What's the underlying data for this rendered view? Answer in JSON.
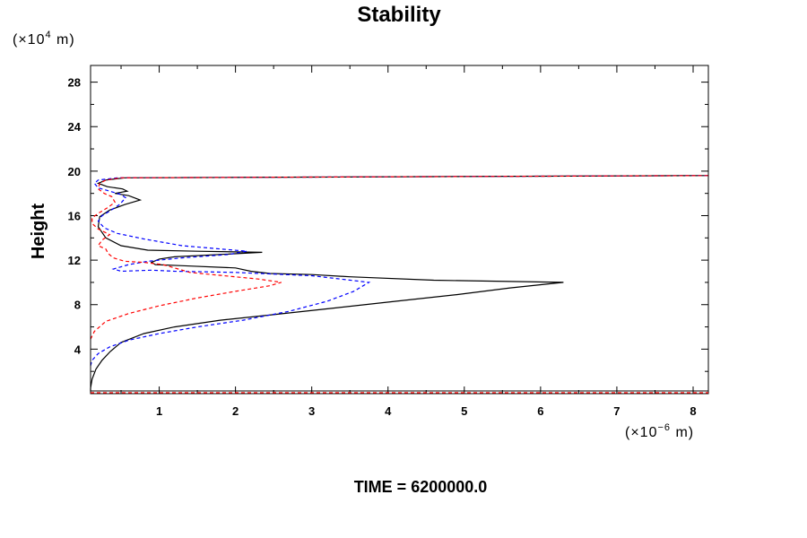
{
  "chart_data": {
    "type": "line",
    "title": "Stability",
    "ylabel": "Height",
    "y_unit_prefix": "(×10",
    "y_unit_exp": "4",
    "y_unit_suffix": " m)",
    "x_unit_prefix": "(×10",
    "x_unit_exp": "−6",
    "x_unit_suffix": " m)",
    "xlim": [
      0.1,
      8.2
    ],
    "ylim": [
      0,
      29.5
    ],
    "x_ticks": [
      "1",
      "2",
      "3",
      "4",
      "5",
      "6",
      "7",
      "8"
    ],
    "x_tick_values": [
      1,
      2,
      3,
      4,
      5,
      6,
      7,
      8
    ],
    "y_ticks": [
      "4",
      "8",
      "12",
      "16",
      "20",
      "24",
      "28"
    ],
    "y_tick_values": [
      4,
      8,
      12,
      16,
      20,
      24,
      28
    ],
    "footer": "TIME = 6200000.0",
    "colors": {
      "black": "#000000",
      "blue": "#0000ff",
      "red": "#ff0000"
    },
    "series": [
      {
        "name": "black-solid",
        "color": "#000000",
        "dash": "",
        "points": [
          [
            0.1,
            0.2
          ],
          [
            0.1,
            0.5
          ],
          [
            0.12,
            1.3
          ],
          [
            0.17,
            2.2
          ],
          [
            0.25,
            3.0
          ],
          [
            0.36,
            3.8
          ],
          [
            0.5,
            4.6
          ],
          [
            0.8,
            5.4
          ],
          [
            1.2,
            6.0
          ],
          [
            1.8,
            6.6
          ],
          [
            2.5,
            7.1
          ],
          [
            3.3,
            7.7
          ],
          [
            4.1,
            8.3
          ],
          [
            4.9,
            8.9
          ],
          [
            5.6,
            9.5
          ],
          [
            6.3,
            10.0
          ],
          [
            4.6,
            10.2
          ],
          [
            3.5,
            10.5
          ],
          [
            3.0,
            10.7
          ],
          [
            2.45,
            10.8
          ],
          [
            2.2,
            11.0
          ],
          [
            2.0,
            11.3
          ],
          [
            1.3,
            11.5
          ],
          [
            0.95,
            11.6
          ],
          [
            0.9,
            11.8
          ],
          [
            1.0,
            12.1
          ],
          [
            1.2,
            12.3
          ],
          [
            2.35,
            12.7
          ],
          [
            1.5,
            12.8
          ],
          [
            0.85,
            12.9
          ],
          [
            0.5,
            13.3
          ],
          [
            0.3,
            14.0
          ],
          [
            0.2,
            15.0
          ],
          [
            0.22,
            15.9
          ],
          [
            0.35,
            16.5
          ],
          [
            0.55,
            17.0
          ],
          [
            0.75,
            17.4
          ],
          [
            0.6,
            17.8
          ],
          [
            0.42,
            18.0
          ],
          [
            0.58,
            18.2
          ],
          [
            0.52,
            18.4
          ],
          [
            0.32,
            18.6
          ],
          [
            0.2,
            18.9
          ],
          [
            0.3,
            19.2
          ],
          [
            0.55,
            19.4
          ],
          [
            8.2,
            19.6
          ]
        ]
      },
      {
        "name": "blue-dashed",
        "color": "#0000ff",
        "dash": "4,3",
        "points": [
          [
            0.1,
            2.5
          ],
          [
            0.12,
            3.0
          ],
          [
            0.2,
            3.6
          ],
          [
            0.35,
            4.2
          ],
          [
            0.6,
            4.8
          ],
          [
            1.0,
            5.4
          ],
          [
            1.5,
            6.0
          ],
          [
            2.1,
            6.6
          ],
          [
            2.7,
            7.4
          ],
          [
            3.2,
            8.3
          ],
          [
            3.55,
            9.2
          ],
          [
            3.75,
            10.0
          ],
          [
            3.0,
            10.6
          ],
          [
            2.0,
            10.9
          ],
          [
            1.2,
            11.0
          ],
          [
            0.9,
            11.1
          ],
          [
            0.5,
            11.0
          ],
          [
            0.4,
            11.2
          ],
          [
            0.6,
            11.6
          ],
          [
            0.85,
            11.9
          ],
          [
            1.3,
            12.2
          ],
          [
            1.9,
            12.5
          ],
          [
            2.15,
            12.8
          ],
          [
            1.3,
            13.3
          ],
          [
            0.8,
            13.9
          ],
          [
            0.45,
            14.4
          ],
          [
            0.28,
            14.9
          ],
          [
            0.2,
            15.5
          ],
          [
            0.25,
            16.0
          ],
          [
            0.35,
            16.4
          ],
          [
            0.48,
            17.0
          ],
          [
            0.56,
            17.6
          ],
          [
            0.5,
            17.9
          ],
          [
            0.35,
            18.2
          ],
          [
            0.2,
            18.5
          ],
          [
            0.15,
            18.9
          ],
          [
            0.2,
            19.2
          ],
          [
            0.45,
            19.4
          ],
          [
            8.2,
            19.6
          ]
        ]
      },
      {
        "name": "red-dashed",
        "color": "#ff0000",
        "dash": "4,3",
        "points": [
          [
            0.1,
            4.9
          ],
          [
            0.15,
            5.6
          ],
          [
            0.3,
            6.5
          ],
          [
            0.6,
            7.2
          ],
          [
            1.0,
            7.9
          ],
          [
            1.5,
            8.6
          ],
          [
            2.0,
            9.2
          ],
          [
            2.45,
            9.7
          ],
          [
            2.6,
            10.0
          ],
          [
            2.3,
            10.3
          ],
          [
            1.85,
            10.6
          ],
          [
            1.4,
            10.9
          ],
          [
            1.25,
            11.2
          ],
          [
            1.05,
            11.6
          ],
          [
            0.8,
            11.8
          ],
          [
            0.55,
            11.9
          ],
          [
            0.4,
            12.2
          ],
          [
            0.33,
            12.6
          ],
          [
            0.3,
            13.0
          ],
          [
            0.2,
            13.3
          ],
          [
            0.25,
            13.8
          ],
          [
            0.35,
            14.3
          ],
          [
            0.2,
            14.8
          ],
          [
            0.12,
            15.3
          ],
          [
            0.12,
            15.8
          ],
          [
            0.2,
            16.2
          ],
          [
            0.32,
            16.7
          ],
          [
            0.42,
            17.2
          ],
          [
            0.38,
            17.7
          ],
          [
            0.28,
            18.0
          ],
          [
            0.2,
            18.4
          ],
          [
            0.22,
            18.9
          ],
          [
            0.3,
            19.2
          ],
          [
            0.5,
            19.4
          ],
          [
            8.2,
            19.6
          ]
        ]
      }
    ]
  }
}
